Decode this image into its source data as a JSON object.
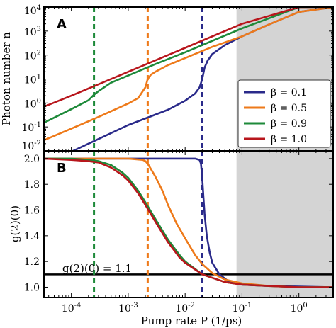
{
  "chart_data": {
    "type": "line",
    "x_label": "Pump rate P (1/ps)",
    "x_scale": "log",
    "x_range": [
      3.3e-05,
      4.0
    ],
    "x_tick_labels": [
      {
        "x": 0.0001,
        "base": "10",
        "exp": "-4"
      },
      {
        "x": 0.001,
        "base": "10",
        "exp": "-3"
      },
      {
        "x": 0.01,
        "base": "10",
        "exp": "-2"
      },
      {
        "x": 0.1,
        "base": "10",
        "exp": "-1"
      },
      {
        "x": 1,
        "base": "10",
        "exp": "0"
      }
    ],
    "shaded_region_x": [
      0.08,
      4.0
    ],
    "shade_color": "#d4d4d4",
    "vertical_dashed_lines": [
      {
        "x": 0.00025,
        "color": "#1e8a3a"
      },
      {
        "x": 0.0022,
        "color": "#ee7a1a"
      },
      {
        "x": 0.02,
        "color": "#2a2a8a"
      }
    ],
    "series_styles": [
      {
        "name": "β = 0.1",
        "color": "#2a2a8a"
      },
      {
        "name": "β = 0.5",
        "color": "#ee7a1a"
      },
      {
        "name": "β = 0.9",
        "color": "#1e8a3a"
      },
      {
        "name": "β = 1.0",
        "color": "#b8161c"
      }
    ],
    "panels": [
      {
        "letter": "A",
        "y_label": "Photon number n",
        "y_scale": "log",
        "y_range": [
          0.01,
          10000
        ],
        "y_tick_labels": [
          {
            "y": 0.01,
            "base": "10",
            "exp": "-2"
          },
          {
            "y": 0.1,
            "base": "10",
            "exp": "-1"
          },
          {
            "y": 1,
            "base": "10",
            "exp": "0"
          },
          {
            "y": 10,
            "base": "10",
            "exp": "1"
          },
          {
            "y": 100,
            "base": "10",
            "exp": "2"
          },
          {
            "y": 1000,
            "base": "10",
            "exp": "3"
          },
          {
            "y": 10000,
            "base": "10",
            "exp": "4"
          }
        ],
        "legend": {
          "placement": "lower-right",
          "entries": [
            "β = 0.1",
            "β = 0.5",
            "β = 0.9",
            "β = 1.0"
          ]
        },
        "series": [
          {
            "name": "β = 0.1",
            "x": [
              3.3e-05,
              0.0001,
              0.001,
              0.005,
              0.01,
              0.015,
              0.018,
              0.02,
              0.022,
              0.025,
              0.03,
              0.05,
              0.1,
              0.3,
              1,
              4
            ],
            "y": [
              0.0084,
              0.0092,
              0.12,
              0.52,
              1.25,
              2.5,
              4.5,
              10,
              30,
              60,
              110,
              260,
              600,
              1900,
              6300,
              10000
            ]
          },
          {
            "name": "β = 0.5",
            "x": [
              3.3e-05,
              0.0001,
              0.0003,
              0.001,
              0.0015,
              0.002,
              0.0022,
              0.0025,
              0.003,
              0.005,
              0.01,
              0.03,
              0.1,
              0.3,
              1,
              4
            ],
            "y": [
              0.028,
              0.085,
              0.26,
              0.95,
              1.6,
              4.5,
              10,
              15,
              20,
              38,
              75,
              220,
              600,
              1900,
              6300,
              10000
            ]
          },
          {
            "name": "β = 0.9",
            "x": [
              3.3e-05,
              0.0001,
              0.0002,
              0.00025,
              0.0003,
              0.0005,
              0.001,
              0.003,
              0.01,
              0.1,
              1,
              4
            ],
            "y": [
              0.15,
              0.55,
              1.3,
              2.2,
              3.1,
              7,
              14,
              42,
              130,
              1300,
              10000,
              10000
            ]
          },
          {
            "name": "β = 1.0",
            "x": [
              3.3e-05,
              0.0001,
              0.001,
              0.01,
              0.1,
              1,
              4
            ],
            "y": [
              0.7,
              2.0,
              20,
              200,
              2000,
              10000,
              10000
            ]
          }
        ]
      },
      {
        "letter": "B",
        "y_label": "g(2)(0)",
        "y_scale": "linear",
        "y_range": [
          0.92,
          2.06
        ],
        "y_tick_labels": [
          {
            "y": 1.0,
            "text": "1.0"
          },
          {
            "y": 1.2,
            "text": "1.2"
          },
          {
            "y": 1.4,
            "text": "1.4"
          },
          {
            "y": 1.6,
            "text": "1.6"
          },
          {
            "y": 1.8,
            "text": "1.8"
          },
          {
            "y": 2.0,
            "text": "2.0"
          }
        ],
        "reference_line": {
          "y": 1.1,
          "label": "g(2)(0) = 1.1"
        },
        "series": [
          {
            "name": "β = 0.1",
            "x": [
              3.3e-05,
              0.001,
              0.01,
              0.015,
              0.018,
              0.019,
              0.02,
              0.021,
              0.022,
              0.024,
              0.027,
              0.03,
              0.04,
              0.06,
              0.1,
              0.3,
              1,
              4
            ],
            "y": [
              2.0,
              2.0,
              2.0,
              2.0,
              1.99,
              1.96,
              1.85,
              1.7,
              1.57,
              1.4,
              1.27,
              1.19,
              1.1,
              1.04,
              1.02,
              1.01,
              1.005,
              1.0
            ]
          },
          {
            "name": "β = 0.5",
            "x": [
              3.3e-05,
              0.001,
              0.0018,
              0.002,
              0.0022,
              0.0025,
              0.003,
              0.004,
              0.005,
              0.007,
              0.01,
              0.015,
              0.02,
              0.03,
              0.05,
              0.1,
              0.3,
              1,
              4
            ],
            "y": [
              2.0,
              2.0,
              1.99,
              1.98,
              1.96,
              1.92,
              1.86,
              1.75,
              1.64,
              1.5,
              1.38,
              1.25,
              1.18,
              1.11,
              1.06,
              1.03,
              1.01,
              1.0,
              1.0
            ]
          },
          {
            "name": "β = 0.9",
            "x": [
              3.3e-05,
              0.0001,
              0.0002,
              0.0003,
              0.0005,
              0.0008,
              0.001,
              0.0015,
              0.002,
              0.003,
              0.005,
              0.008,
              0.01,
              0.02,
              0.05,
              0.1,
              0.3,
              1,
              4
            ],
            "y": [
              2.0,
              2.0,
              1.99,
              1.98,
              1.95,
              1.89,
              1.85,
              1.75,
              1.66,
              1.53,
              1.37,
              1.25,
              1.2,
              1.1,
              1.04,
              1.02,
              1.01,
              1.0,
              1.0
            ]
          },
          {
            "name": "β = 1.0",
            "x": [
              3.3e-05,
              0.0001,
              0.0002,
              0.0003,
              0.0005,
              0.0008,
              0.001,
              0.0015,
              0.002,
              0.003,
              0.005,
              0.008,
              0.01,
              0.02,
              0.05,
              0.1,
              0.3,
              1,
              4
            ],
            "y": [
              2.0,
              1.99,
              1.98,
              1.97,
              1.93,
              1.87,
              1.83,
              1.73,
              1.64,
              1.51,
              1.35,
              1.23,
              1.19,
              1.1,
              1.04,
              1.02,
              1.01,
              1.0,
              1.0
            ]
          }
        ]
      }
    ]
  }
}
